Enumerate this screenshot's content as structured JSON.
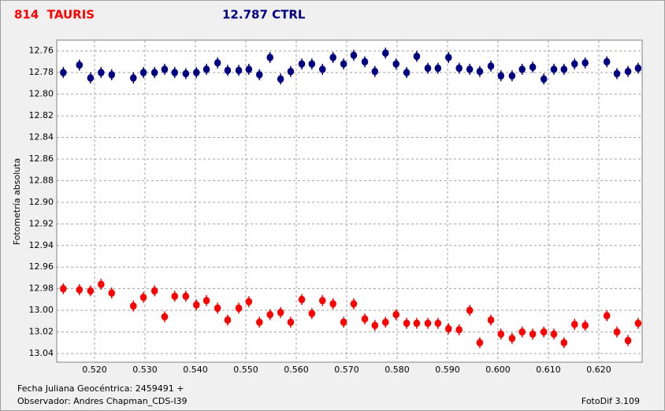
{
  "chart_data": {
    "type": "scatter",
    "ylabel": "Fotometría absoluta",
    "xlabel": "Fecha Juliana Geocéntrica: 2459491 +",
    "annotations": [
      "Observador: Andres Chapman_CDS-I39",
      "FotoDif 3.109"
    ],
    "xlim": [
      0.5125,
      0.6286
    ],
    "ylim": [
      12.75,
      13.048
    ],
    "yinvert": true,
    "grid": true,
    "xticks": [
      {
        "value": 0.52,
        "label": "0.520"
      },
      {
        "value": 0.53,
        "label": "0.530"
      },
      {
        "value": 0.54,
        "label": "0.540"
      },
      {
        "value": 0.55,
        "label": "0.550"
      },
      {
        "value": 0.56,
        "label": "0.560"
      },
      {
        "value": 0.57,
        "label": "0.570"
      },
      {
        "value": 0.58,
        "label": "0.580"
      },
      {
        "value": 0.59,
        "label": "0.590"
      },
      {
        "value": 0.6,
        "label": "0.600"
      },
      {
        "value": 0.61,
        "label": "0.610"
      },
      {
        "value": 0.62,
        "label": "0.620"
      }
    ],
    "yticks": [
      12.76,
      12.78,
      {
        "value": 12.8,
        "label": "12.80"
      },
      12.82,
      12.84,
      12.86,
      12.88,
      {
        "value": 12.9,
        "label": "12.90"
      },
      12.92,
      12.94,
      12.96,
      12.98,
      {
        "value": 13.0,
        "label": "13.00"
      },
      13.02,
      13.04
    ],
    "x": [
      0.5138,
      0.517,
      0.5192,
      0.5213,
      0.5234,
      0.5277,
      0.5297,
      0.5319,
      0.5339,
      0.5359,
      0.5381,
      0.5402,
      0.5422,
      0.5444,
      0.5464,
      0.5486,
      0.5506,
      0.5527,
      0.5548,
      0.5569,
      0.5589,
      0.5611,
      0.5631,
      0.5652,
      0.5673,
      0.5694,
      0.5714,
      0.5736,
      0.5756,
      0.5777,
      0.5798,
      0.5819,
      0.5839,
      0.5861,
      0.5881,
      0.5902,
      0.5923,
      0.5944,
      0.5964,
      0.5986,
      0.6006,
      0.6028,
      0.6048,
      0.6069,
      0.6091,
      0.6111,
      0.6131,
      0.6152,
      0.6173,
      0.6216,
      0.6236,
      0.6258,
      0.6278
    ],
    "series": [
      {
        "name": "814  TAURIS",
        "color": "#ff0000",
        "values": [
          12.98,
          12.981,
          12.982,
          12.976,
          12.984,
          12.996,
          12.988,
          12.982,
          13.006,
          12.987,
          12.987,
          12.995,
          12.991,
          12.998,
          13.009,
          12.998,
          12.992,
          13.011,
          13.004,
          13.002,
          13.011,
          12.99,
          13.003,
          12.991,
          12.994,
          13.011,
          12.994,
          13.008,
          13.014,
          13.011,
          13.004,
          13.012,
          13.012,
          13.012,
          13.012,
          13.017,
          13.018,
          13.0,
          13.03,
          13.009,
          13.022,
          13.026,
          13.02,
          13.022,
          13.02,
          13.022,
          13.03,
          13.013,
          13.014,
          13.005,
          13.02,
          13.028,
          13.012
        ]
      },
      {
        "name": "12.787 CTRL",
        "color": "#000080",
        "values": [
          12.78,
          12.773,
          12.785,
          12.78,
          12.782,
          12.785,
          12.78,
          12.78,
          12.777,
          12.78,
          12.781,
          12.78,
          12.777,
          12.771,
          12.778,
          12.778,
          12.777,
          12.782,
          12.766,
          12.786,
          12.779,
          12.772,
          12.772,
          12.777,
          12.766,
          12.772,
          12.764,
          12.77,
          12.779,
          12.762,
          12.772,
          12.78,
          12.765,
          12.776,
          12.776,
          12.766,
          12.776,
          12.777,
          12.779,
          12.774,
          12.783,
          12.783,
          12.777,
          12.775,
          12.786,
          12.777,
          12.777,
          12.772,
          12.771,
          12.77,
          12.781,
          12.779,
          12.776
        ]
      }
    ]
  }
}
